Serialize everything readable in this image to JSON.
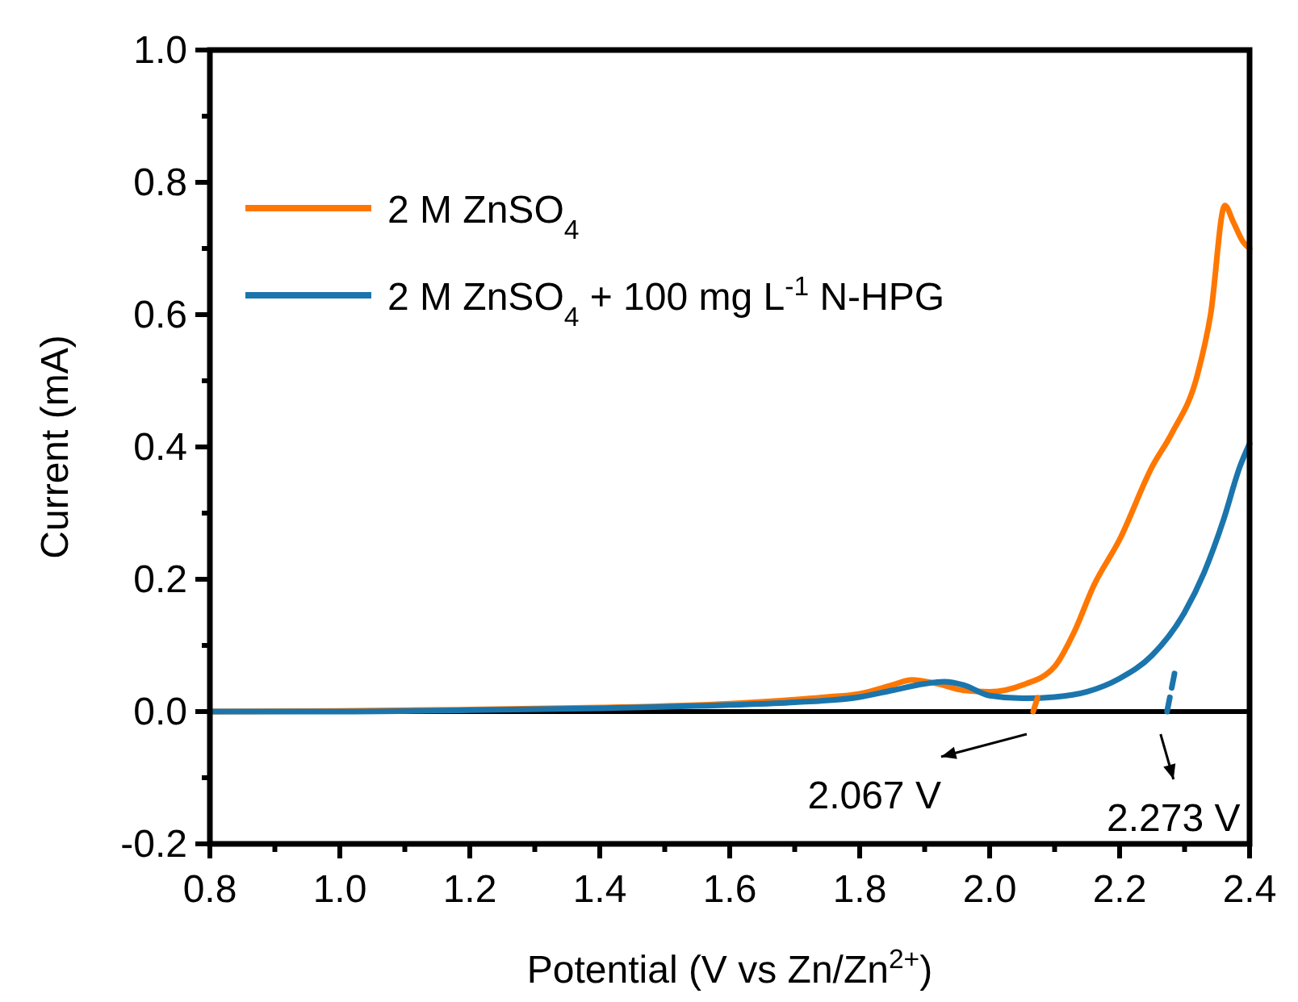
{
  "chart_data": {
    "type": "line",
    "xlabel": "Potential (V vs Zn/Zn$^{2+}$)",
    "ylabel": "Current (mA)",
    "xlim": [
      0.8,
      2.4
    ],
    "ylim": [
      -0.2,
      1.0
    ],
    "xticks": [
      {
        "value": 0.8,
        "label": "0.8"
      },
      {
        "value": 0.9,
        "label": null
      },
      {
        "value": 1.0,
        "label": "1.0"
      },
      {
        "value": 1.1,
        "label": null
      },
      {
        "value": 1.2,
        "label": "1.2"
      },
      {
        "value": 1.3,
        "label": null
      },
      {
        "value": 1.4,
        "label": "1.4"
      },
      {
        "value": 1.5,
        "label": null
      },
      {
        "value": 1.6,
        "label": "1.6"
      },
      {
        "value": 1.7,
        "label": null
      },
      {
        "value": 1.8,
        "label": "1.8"
      },
      {
        "value": 1.9,
        "label": null
      },
      {
        "value": 2.0,
        "label": "2.0"
      },
      {
        "value": 2.1,
        "label": null
      },
      {
        "value": 2.2,
        "label": "2.2"
      },
      {
        "value": 2.3,
        "label": null
      },
      {
        "value": 2.4,
        "label": "2.4"
      }
    ],
    "yticks": [
      {
        "value": -0.2,
        "label": "-0.2"
      },
      {
        "value": -0.1,
        "label": null
      },
      {
        "value": 0,
        "label": "0.0"
      },
      {
        "value": 0.1,
        "label": null
      },
      {
        "value": 0.2,
        "label": "0.2"
      },
      {
        "value": 0.3,
        "label": null
      },
      {
        "value": 0.4,
        "label": "0.4"
      },
      {
        "value": 0.5,
        "label": null
      },
      {
        "value": 0.6,
        "label": "0.6"
      },
      {
        "value": 0.7,
        "label": null
      },
      {
        "value": 0.8,
        "label": "0.8"
      },
      {
        "value": 0.9,
        "label": null
      },
      {
        "value": 1.0,
        "label": "1.0"
      }
    ],
    "grid": false,
    "legend": "top left",
    "line_style": "solid",
    "series": [
      {
        "name": "2 M ZnSO$_{4}$",
        "color": "#ff7700",
        "x": [
          0.8,
          1.0,
          1.2,
          1.4,
          1.6,
          1.7,
          1.75,
          1.8,
          1.85,
          1.88,
          1.92,
          1.96,
          2.0,
          2.05,
          2.1,
          2.13,
          2.16,
          2.2,
          2.25,
          2.28,
          2.32,
          2.34,
          2.362,
          2.375,
          2.39,
          2.4
        ],
        "values": [
          0,
          0.001,
          0.003,
          0.006,
          0.012,
          0.018,
          0.022,
          0.027,
          0.04,
          0.048,
          0.042,
          0.032,
          0.03,
          0.04,
          0.068,
          0.12,
          0.19,
          0.26,
          0.37,
          0.42,
          0.51,
          0.6,
          0.765,
          0.74,
          0.71,
          0.7
        ]
      },
      {
        "name": "2 M ZnSO$_{4}$ + 100 mg L$^{-1}$ N-HPG",
        "color": "#1b75ad",
        "x": [
          0.8,
          1.0,
          1.2,
          1.4,
          1.6,
          1.7,
          1.8,
          1.85,
          1.9,
          1.93,
          1.96,
          2.0,
          2.05,
          2.1,
          2.15,
          2.2,
          2.25,
          2.3,
          2.33,
          2.36,
          2.385,
          2.4
        ],
        "values": [
          0,
          0,
          0.002,
          0.005,
          0.01,
          0.014,
          0.022,
          0.032,
          0.042,
          0.045,
          0.04,
          0.024,
          0.02,
          0.022,
          0.03,
          0.05,
          0.085,
          0.15,
          0.21,
          0.29,
          0.37,
          0.405
        ]
      },
      {
        "color": "#ff7700",
        "line_style": "dashed",
        "x": [
          2.067,
          2.075
        ],
        "values": [
          0,
          0.025
        ]
      },
      {
        "color": "#1b75ad",
        "line_style": "dashed",
        "x": [
          2.273,
          2.285
        ],
        "values": [
          0,
          0.06
        ]
      }
    ],
    "ref_lines": [
      {
        "axis": "y",
        "value": 0,
        "color": "#000000"
      }
    ],
    "annotations": [
      {
        "text": "2.067 V",
        "x": 2.067,
        "y": 0
      },
      {
        "text": "2.273 V",
        "x": 2.273,
        "y": 0
      }
    ]
  }
}
